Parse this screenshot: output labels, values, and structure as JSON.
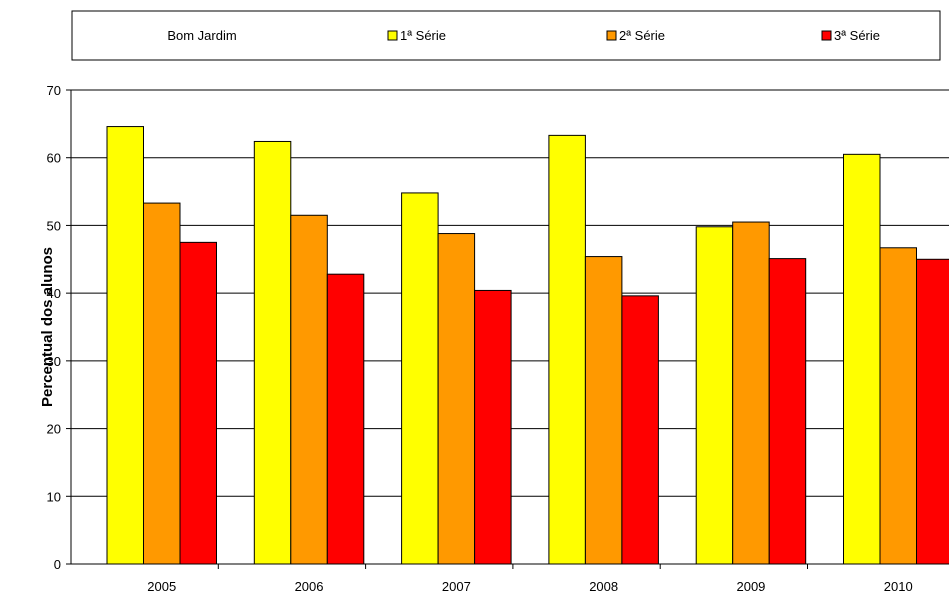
{
  "chart_data": {
    "type": "bar",
    "title": "",
    "legend_label": "Bom Jardim",
    "legend_placement": "top",
    "categories": [
      "2005",
      "2006",
      "2007",
      "2008",
      "2009",
      "2010"
    ],
    "series": [
      {
        "name": "1ª Série",
        "color": "#ffff00",
        "values": [
          64.6,
          62.4,
          54.8,
          63.3,
          49.8,
          60.5
        ]
      },
      {
        "name": "2ª Série",
        "color": "#ff9900",
        "values": [
          53.3,
          51.5,
          48.8,
          45.4,
          50.5,
          46.7
        ]
      },
      {
        "name": "3ª Série",
        "color": "#ff0000",
        "values": [
          47.5,
          42.8,
          40.4,
          39.6,
          45.1,
          45.0
        ]
      }
    ],
    "xlabel": "",
    "ylabel": "Percentual dos alunos",
    "ylim": [
      0,
      70
    ],
    "yticks": [
      0,
      10,
      20,
      30,
      40,
      50,
      60,
      70
    ],
    "grid": true
  }
}
